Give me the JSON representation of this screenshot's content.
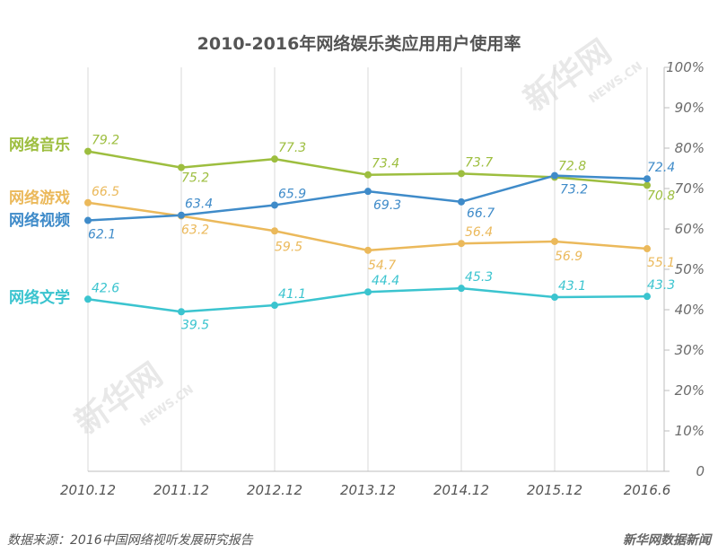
{
  "chart_data": {
    "type": "line",
    "title": "2010-2016年网络娱乐类应用用户使用率",
    "categories": [
      "2010.12",
      "2011.12",
      "2012.12",
      "2013.12",
      "2014.12",
      "2015.12",
      "2016.6"
    ],
    "ylim": [
      0,
      100
    ],
    "y_ticks": [
      "0",
      "10%",
      "20%",
      "30%",
      "40%",
      "50%",
      "60%",
      "70%",
      "80%",
      "90%",
      "100%"
    ],
    "y_axis_side": "right",
    "grid": "vertical",
    "legend_placement": "left, inline labels",
    "series": [
      {
        "name": "网络音乐",
        "color": "#9dbe3f",
        "values": [
          79.2,
          75.2,
          77.3,
          73.4,
          73.7,
          72.8,
          70.8
        ],
        "labels": [
          "79.2",
          "75.2",
          "77.3",
          "73.4",
          "73.7",
          "72.8",
          "70.8"
        ]
      },
      {
        "name": "网络游戏",
        "color": "#ebb95b",
        "values": [
          66.5,
          63.2,
          59.5,
          54.7,
          56.4,
          56.9,
          55.1
        ],
        "labels": [
          "66.5",
          "63.2",
          "59.5",
          "54.7",
          "56.4",
          "56.9",
          "55.1"
        ]
      },
      {
        "name": "网络视频",
        "color": "#3f8bc9",
        "values": [
          62.1,
          63.4,
          65.9,
          69.3,
          66.7,
          73.2,
          72.4
        ],
        "labels": [
          "62.1",
          "63.4",
          "65.9",
          "69.3",
          "66.7",
          "73.2",
          "72.4"
        ]
      },
      {
        "name": "网络文学",
        "color": "#3bc4cf",
        "values": [
          42.6,
          39.5,
          41.1,
          44.4,
          45.3,
          43.1,
          43.3
        ],
        "labels": [
          "42.6",
          "39.5",
          "41.1",
          "44.4",
          "45.3",
          "43.1",
          "43.3"
        ]
      }
    ]
  },
  "footer": {
    "source": "数据来源：2016中国网络视听发展研究报告",
    "credit": "新华网数据新闻"
  },
  "watermark": {
    "text": "新华网",
    "url": "NEWS.CN"
  }
}
